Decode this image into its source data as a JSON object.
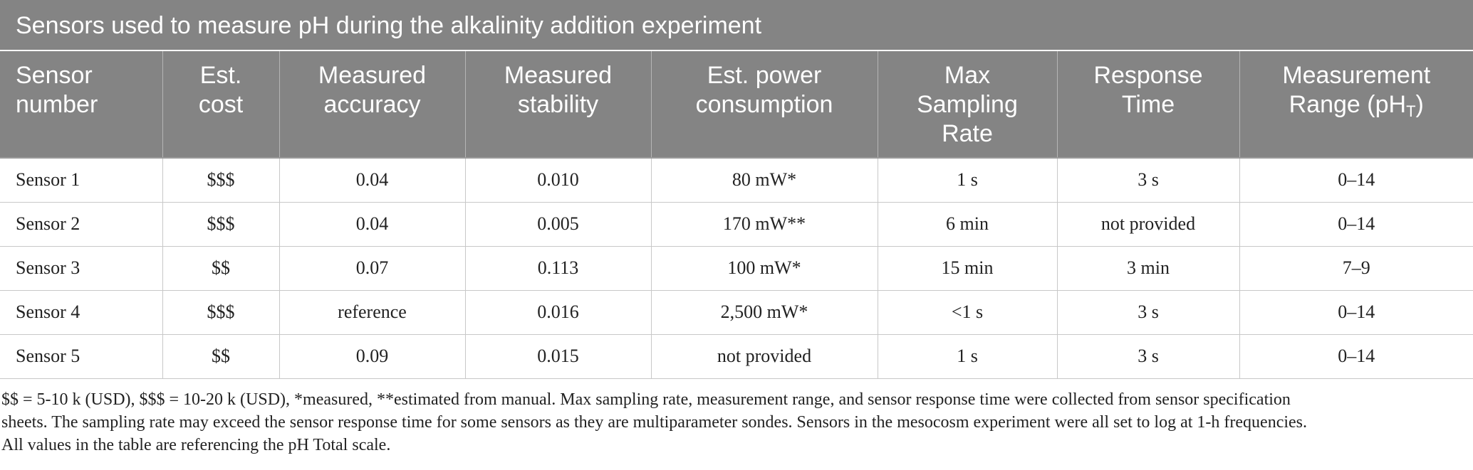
{
  "title": "Sensors used to measure pH during the alkalinity addition experiment",
  "headers": [
    {
      "lines": [
        "Sensor",
        "number"
      ]
    },
    {
      "lines": [
        "Est.",
        "cost"
      ]
    },
    {
      "lines": [
        "Measured",
        "accuracy"
      ]
    },
    {
      "lines": [
        "Measured",
        "stability"
      ]
    },
    {
      "lines": [
        "Est. power",
        "consumption"
      ]
    },
    {
      "lines": [
        "Max",
        "Sampling",
        "Rate"
      ]
    },
    {
      "lines": [
        "Response",
        "Time"
      ]
    },
    {
      "lines": [
        "Measurement",
        "Range (pH"
      ],
      "subscript": "T",
      "suffix": ")"
    }
  ],
  "rows": [
    [
      "Sensor 1",
      "$$$",
      "0.04",
      "0.010",
      "80 mW*",
      "1 s",
      "3 s",
      "0–14"
    ],
    [
      "Sensor 2",
      "$$$",
      "0.04",
      "0.005",
      "170 mW**",
      "6 min",
      "not provided",
      "0–14"
    ],
    [
      "Sensor 3",
      "$$",
      "0.07",
      "0.113",
      "100 mW*",
      "15 min",
      "3 min",
      "7–9"
    ],
    [
      "Sensor 4",
      "$$$",
      "reference",
      "0.016",
      "2,500 mW*",
      "<1 s",
      "3 s",
      "0–14"
    ],
    [
      "Sensor 5",
      "$$",
      "0.09",
      "0.015",
      "not provided",
      "1 s",
      "3 s",
      "0–14"
    ]
  ],
  "footnote": [
    "$$ = 5-10 k (USD), $$$ = 10-20 k (USD), *measured, **estimated from manual. Max sampling rate, measurement range, and sensor response time were collected from sensor specification",
    "sheets. The sampling rate may exceed the sensor response time for some sensors as they are multiparameter sondes. Sensors in the mesocosm experiment were all set to log at 1-h frequencies.",
    "All values in the table are referencing the pH Total scale."
  ]
}
